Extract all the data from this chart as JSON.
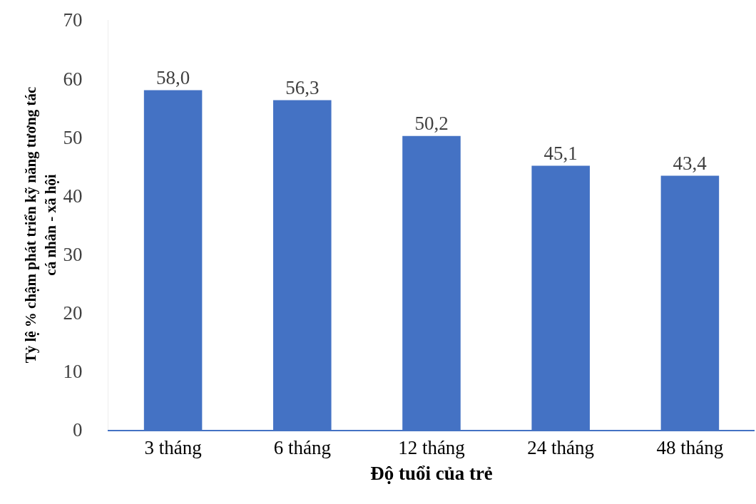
{
  "chart_data": {
    "type": "bar",
    "xlabel": "Độ tuổi của trẻ",
    "ylabel": "Tỷ lệ % chậm phát triển kỹ năng tương tác\ncá nhân - xã hội",
    "categories": [
      "3 tháng",
      "6 tháng",
      "12 tháng",
      "24 tháng",
      "48 tháng"
    ],
    "values": [
      58.0,
      56.3,
      50.2,
      45.1,
      43.4
    ],
    "value_labels": [
      "58,0",
      "56,3",
      "50,2",
      "45,1",
      "43,4"
    ],
    "color": "#4472c4",
    "ylim": [
      0,
      70
    ],
    "yticks": [
      0,
      10,
      20,
      30,
      40,
      50,
      60,
      70
    ],
    "grid": false
  }
}
